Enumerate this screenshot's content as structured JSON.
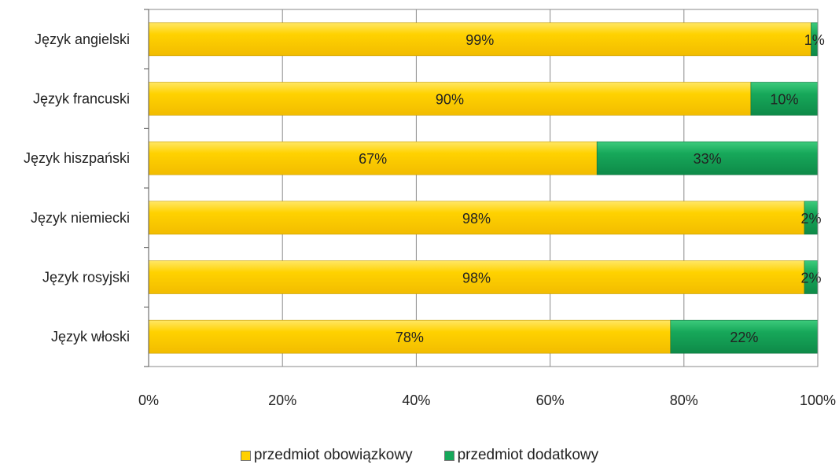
{
  "chart_data": {
    "type": "bar",
    "orientation": "horizontal",
    "stacked": "percent",
    "categories": [
      "Język angielski",
      "Język francuski",
      "Język hiszpański",
      "Język niemiecki",
      "Język rosyjski",
      "Język włoski"
    ],
    "series": [
      {
        "name": "przedmiot obowiązkowy",
        "values": [
          99,
          90,
          67,
          98,
          98,
          78
        ],
        "labels": [
          "99%",
          "90%",
          "67%",
          "98%",
          "98%",
          "78%"
        ],
        "color": "#FFD000"
      },
      {
        "name": "przedmiot dodatkowy",
        "values": [
          1,
          10,
          33,
          2,
          2,
          22
        ],
        "labels": [
          "1%",
          "10%",
          "33%",
          "2%",
          "2%",
          "22%"
        ],
        "color": "#16A85A"
      }
    ],
    "x_ticks": [
      "0%",
      "20%",
      "40%",
      "60%",
      "80%",
      "100%"
    ],
    "xlim": [
      0,
      100
    ],
    "grid": true,
    "legend_position": "bottom",
    "title": "",
    "xlabel": "",
    "ylabel": ""
  }
}
